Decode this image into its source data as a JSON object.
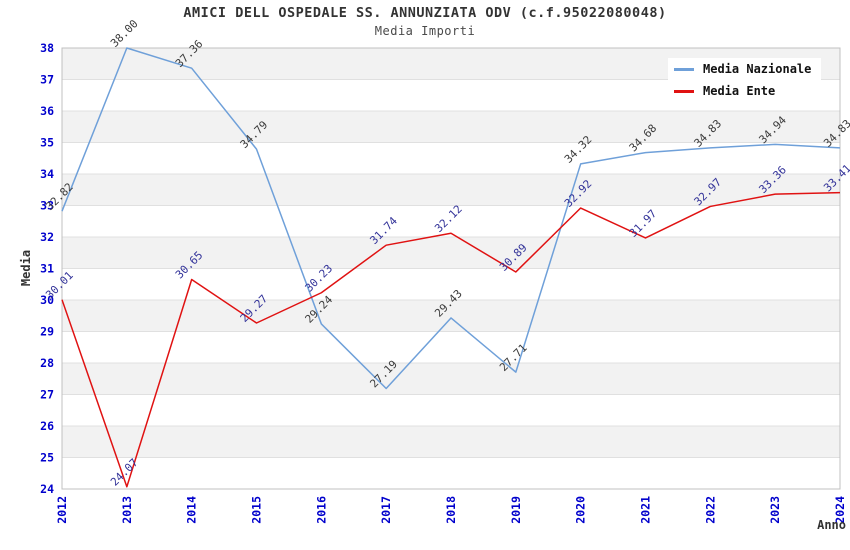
{
  "chart_data": {
    "type": "line",
    "title": "AMICI DELL OSPEDALE SS. ANNUNZIATA ODV (c.f.95022080048)",
    "subtitle": "Media Importi",
    "xlabel": "Anno",
    "ylabel": "Media",
    "x": [
      2012,
      2013,
      2014,
      2015,
      2016,
      2017,
      2018,
      2019,
      2020,
      2021,
      2022,
      2023,
      2024
    ],
    "ylim": [
      24,
      38
    ],
    "ytick_step": 1,
    "grid": true,
    "band_fill": "#F2F2F2",
    "gridline_color": "#E0E0E0",
    "border_color": "#C0C0C0",
    "tick_label_color": "#0000CC",
    "axis_title_color": "#333333",
    "legend_position": "top-right",
    "series": [
      {
        "name": "Media Nazionale",
        "color": "#6FA0D9",
        "label_color": "#3C3C3C",
        "values": [
          32.82,
          38.0,
          37.36,
          34.79,
          29.24,
          27.19,
          29.43,
          27.71,
          34.32,
          34.68,
          34.83,
          34.94,
          34.83
        ]
      },
      {
        "name": "Media Ente",
        "color": "#E01212",
        "label_color": "#333399",
        "values": [
          30.01,
          24.07,
          30.65,
          29.27,
          30.23,
          31.74,
          32.12,
          30.89,
          32.92,
          31.97,
          32.97,
          33.36,
          33.41
        ]
      }
    ]
  }
}
